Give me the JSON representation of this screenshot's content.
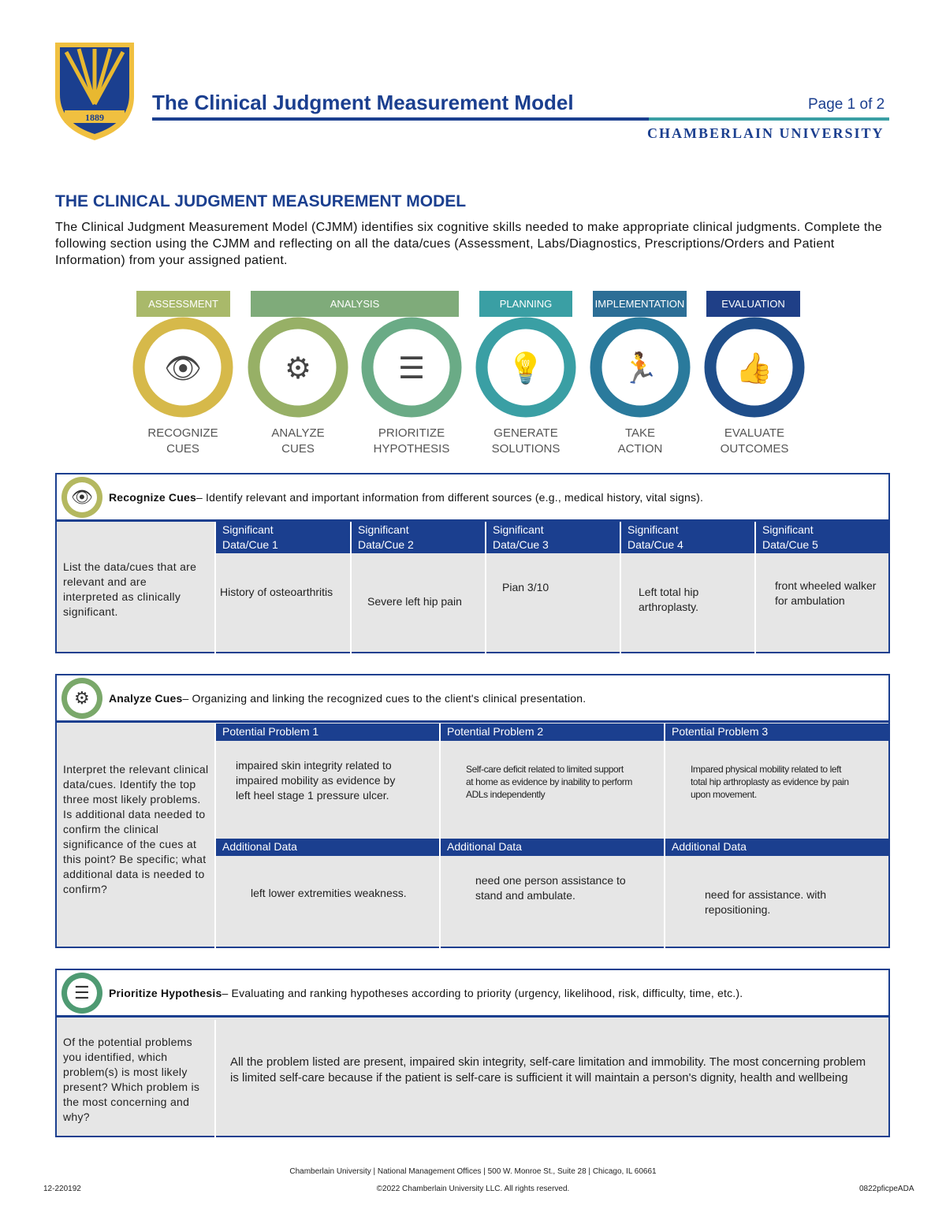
{
  "header": {
    "title": "The Clinical Judgment Measurement Model",
    "page": "Page 1 of 2",
    "university": "CHAMBERLAIN UNIVERSITY",
    "logo_text": "1889"
  },
  "section_title": "THE CLINICAL JUDGMENT MEASUREMENT MODEL",
  "intro": "The Clinical Judgment Measurement Model (CJMM) identifies six cognitive skills needed to make appropriate clinical judgments. Complete the following section using the CJMM and reflecting on all the data/cues (Assessment, Labs/Diagnostics, Prescriptions/Orders and Patient Information) from your assigned patient.",
  "model": {
    "banners": [
      {
        "label": "ASSESSMENT",
        "color": "#a9b96a"
      },
      {
        "label": "ANALYSIS",
        "color": "#7fab7a"
      },
      {
        "label": "PLANNING",
        "color": "#3a9fa4"
      },
      {
        "label": "IMPLEMENTATION",
        "color": "#2c6e96"
      },
      {
        "label": "EVALUATION",
        "color": "#1f3f87"
      }
    ],
    "stages": [
      {
        "label": "RECOGNIZE\nCUES",
        "icon": "eye-icon",
        "color": "#d6b94a"
      },
      {
        "label": "ANALYZE\nCUES",
        "icon": "gear-magnifier-icon",
        "color": "#97b066"
      },
      {
        "label": "PRIORITIZE\nHYPOTHESIS",
        "icon": "list-icon",
        "color": "#6aab86"
      },
      {
        "label": "GENERATE\nSOLUTIONS",
        "icon": "lightbulb-icon",
        "color": "#3a9fa4"
      },
      {
        "label": "TAKE\nACTION",
        "icon": "runner-icon",
        "color": "#2a7a9c"
      },
      {
        "label": "EVALUATE\nOUTCOMES",
        "icon": "thumbs-up-icon",
        "color": "#1f4e8a"
      }
    ]
  },
  "recognize": {
    "title": "Recognize Cues",
    "desc": " – Identify relevant and important information from different sources (e.g., medical history, vital signs).",
    "prompt": "List the data/cues that are relevant and are interpreted as clinically significant.",
    "headers": [
      "Significant\nData/Cue 1",
      "Significant\nData/Cue 2",
      "Significant\nData/Cue 3",
      "Significant\nData/Cue 4",
      "Significant\nData/Cue 5"
    ],
    "values": [
      "History of osteoarthritis",
      "Severe left hip pain",
      "Pian 3/10",
      "Left total hip arthroplasty.",
      "front wheeled walker for ambulation"
    ]
  },
  "analyze": {
    "title": "Analyze Cues",
    "desc": " – Organizing and linking the recognized cues to the client's clinical presentation.",
    "prompt": "Interpret the relevant clinical data/cues. Identify the top three most likely problems. Is additional data needed to confirm the clinical significance of the cues at this point? Be specific; what additional data is needed to confirm?",
    "problem_headers": [
      "Potential Problem 1",
      "Potential Problem 2",
      "Potential Problem 3"
    ],
    "problems": [
      "impaired skin integrity related to impaired mobility as evidence by left heel stage 1 pressure ulcer.",
      "Self-care deficit related to limited support at home as evidence by inability to perform ADLs independently",
      "Impared physical mobility related to left total hip arthroplasty as evidence by pain upon movement."
    ],
    "additional_header": "Additional Data",
    "additional": [
      "left lower extremities weakness.",
      "need one person assistance to stand and ambulate.",
      "need for assistance. with repositioning."
    ]
  },
  "prioritize": {
    "title": "Prioritize Hypothesis",
    "desc": " – Evaluating and ranking hypotheses according to priority (urgency, likelihood, risk, difficulty, time, etc.).",
    "prompt": "Of the potential problems you identified, which problem(s) is most likely present? Which problem is the most concerning and why?",
    "answer": "All the problem listed are present, impaired skin integrity, self-care limitation and immobility. The most concerning problem is limited self-care because if the patient is self-care is sufficient it will maintain a person's dignity, health and wellbeing"
  },
  "footer": {
    "address": "Chamberlain University | National Management Offices | 500 W. Monroe St., Suite 28 | Chicago, IL 60661",
    "code_left": "12-220192",
    "copyright": "©2022 Chamberlain University LLC. All rights reserved.",
    "code_right": "0822pficpeADA"
  }
}
